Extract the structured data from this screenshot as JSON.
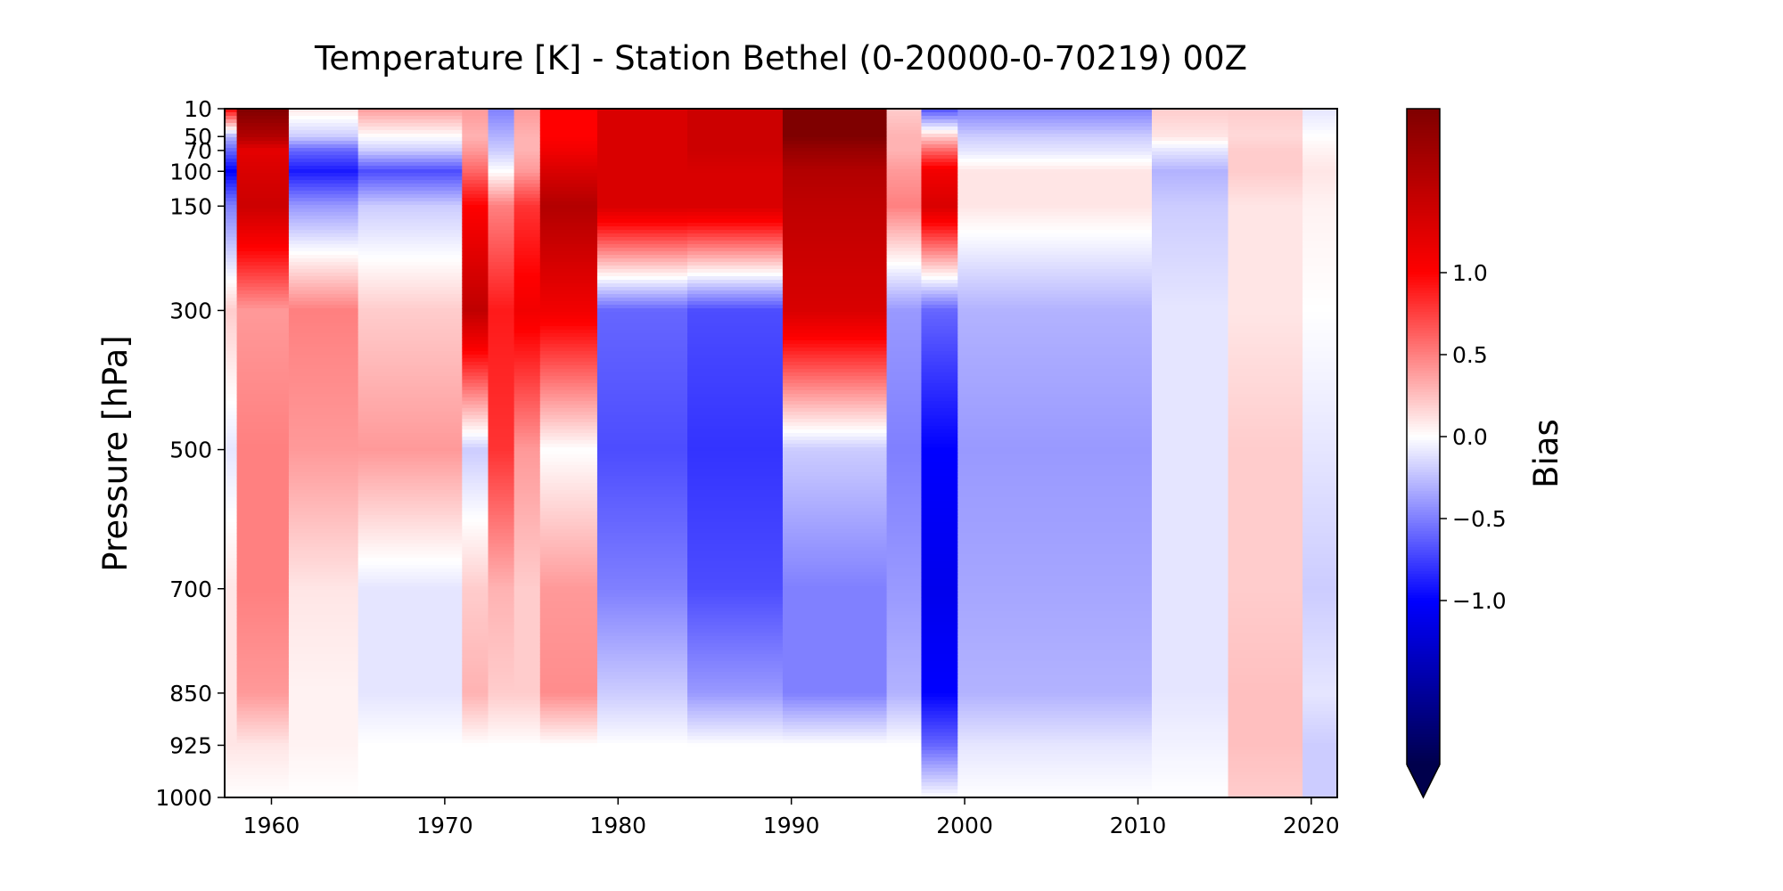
{
  "chart_data": {
    "type": "heatmap",
    "title": "Temperature [K] - Station Bethel (0-20000-0-70219) 00Z",
    "xlabel": "",
    "ylabel": "Pressure [hPa]",
    "x_range": [
      1957.3,
      2021.5
    ],
    "x_ticks": [
      1960,
      1970,
      1980,
      1990,
      2000,
      2010,
      2020
    ],
    "y_levels": [
      10,
      50,
      70,
      100,
      150,
      300,
      500,
      700,
      850,
      925,
      1000
    ],
    "y_ticks": [
      10,
      50,
      70,
      100,
      150,
      300,
      500,
      700,
      850,
      925,
      1000
    ],
    "colorbar": {
      "label": "Bias",
      "range": [
        -2.0,
        2.0
      ],
      "ticks": [
        -1.0,
        -0.5,
        0.0,
        0.5,
        1.0
      ],
      "tick_labels": [
        "−1.0",
        "−0.5",
        "0.0",
        "0.5",
        "1.0"
      ],
      "extend": "min",
      "colormap": "seismic",
      "colors": [
        "#00004c",
        "#0000ff",
        "#ffffff",
        "#ff0000",
        "#7f0000"
      ]
    },
    "segments": [
      {
        "x0": 1957.3,
        "x1": 1958.0,
        "profile": [
          1.0,
          -0.3,
          -0.6,
          -1.0,
          -0.5,
          0.2,
          -0.1,
          0.1,
          0.1,
          0.1,
          0.0
        ]
      },
      {
        "x0": 1958.0,
        "x1": 1961.0,
        "profile": [
          2.0,
          1.6,
          1.2,
          1.3,
          1.4,
          0.4,
          0.5,
          0.5,
          0.4,
          0.1,
          0.0
        ]
      },
      {
        "x0": 1961.0,
        "x1": 1965.0,
        "profile": [
          0.1,
          -0.2,
          -0.6,
          -0.9,
          -0.4,
          0.5,
          0.4,
          0.1,
          0.05,
          0.05,
          0.0
        ]
      },
      {
        "x0": 1965.0,
        "x1": 1971.0,
        "profile": [
          0.4,
          0.0,
          -0.2,
          -0.7,
          -0.2,
          0.2,
          0.4,
          -0.1,
          -0.1,
          0.0,
          0.0
        ]
      },
      {
        "x0": 1971.0,
        "x1": 1972.5,
        "profile": [
          0.4,
          0.3,
          0.4,
          0.6,
          1.0,
          1.5,
          -0.2,
          0.2,
          0.3,
          0.0,
          0.0
        ]
      },
      {
        "x0": 1972.5,
        "x1": 1974.0,
        "profile": [
          -0.5,
          -0.3,
          -0.2,
          0.0,
          0.5,
          0.9,
          0.8,
          0.3,
          0.2,
          0.0,
          0.0
        ]
      },
      {
        "x0": 1974.0,
        "x1": 1975.5,
        "profile": [
          0.4,
          0.3,
          0.3,
          0.4,
          0.8,
          1.1,
          0.4,
          0.2,
          0.2,
          0.0,
          0.0
        ]
      },
      {
        "x0": 1975.5,
        "x1": 1978.8,
        "profile": [
          1.0,
          1.0,
          1.1,
          1.3,
          1.6,
          1.1,
          0.0,
          0.4,
          0.45,
          0.0,
          0.0
        ]
      },
      {
        "x0": 1978.8,
        "x1": 1984.0,
        "profile": [
          1.3,
          1.3,
          1.3,
          1.3,
          1.3,
          -0.6,
          -0.7,
          -0.5,
          -0.2,
          0.0,
          0.0
        ]
      },
      {
        "x0": 1984.0,
        "x1": 1989.5,
        "profile": [
          1.4,
          1.4,
          1.4,
          1.3,
          1.3,
          -0.7,
          -0.8,
          -0.7,
          -0.4,
          0.0,
          0.0
        ]
      },
      {
        "x0": 1989.5,
        "x1": 1995.5,
        "profile": [
          2.2,
          2.0,
          1.8,
          1.6,
          1.5,
          1.3,
          -0.2,
          -0.5,
          -0.5,
          0.0,
          0.0
        ]
      },
      {
        "x0": 1995.5,
        "x1": 1997.5,
        "profile": [
          0.2,
          0.3,
          0.3,
          0.4,
          0.5,
          -0.4,
          -0.5,
          -0.4,
          -0.3,
          0.0,
          0.0
        ]
      },
      {
        "x0": 1997.5,
        "x1": 1999.6,
        "profile": [
          -0.7,
          0.2,
          0.6,
          1.1,
          1.3,
          -0.6,
          -1.0,
          -1.1,
          -1.0,
          -0.6,
          0.0
        ]
      },
      {
        "x0": 1999.6,
        "x1": 2010.8,
        "profile": [
          -0.5,
          -0.2,
          -0.1,
          0.1,
          0.1,
          -0.3,
          -0.4,
          -0.35,
          -0.3,
          -0.1,
          0.0
        ]
      },
      {
        "x0": 2010.8,
        "x1": 2015.2,
        "profile": [
          0.2,
          0.1,
          -0.1,
          -0.3,
          -0.2,
          -0.1,
          -0.1,
          -0.1,
          -0.1,
          -0.05,
          0.0
        ]
      },
      {
        "x0": 2015.2,
        "x1": 2019.5,
        "profile": [
          0.2,
          0.15,
          0.2,
          0.2,
          0.1,
          0.1,
          0.2,
          0.2,
          0.25,
          0.25,
          0.2
        ]
      },
      {
        "x0": 2019.5,
        "x1": 2021.5,
        "profile": [
          -0.1,
          0.0,
          0.05,
          0.1,
          0.05,
          0.0,
          -0.1,
          -0.2,
          -0.1,
          -0.2,
          -0.2
        ]
      }
    ]
  }
}
